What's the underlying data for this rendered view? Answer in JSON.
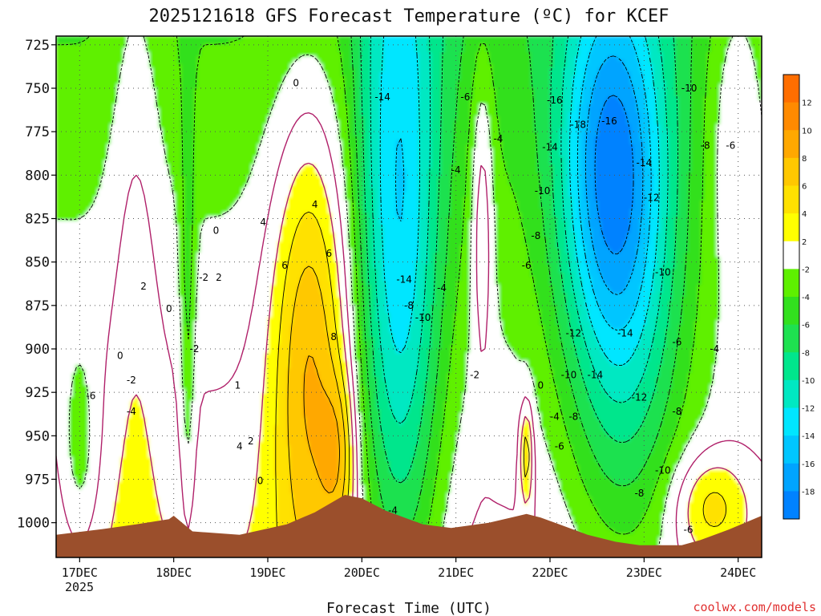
{
  "chart_data": {
    "type": "heatmap",
    "title": "2025121618 GFS Forecast Temperature (ºC) for KCEF",
    "xlabel": "Forecast Time (UTC)",
    "ylabel": "",
    "credit": "coolwx.com/models",
    "y_axis": {
      "ticks": [
        "725",
        "750",
        "775",
        "800",
        "825",
        "850",
        "875",
        "900",
        "925",
        "950",
        "975",
        "1000"
      ],
      "values": [
        725,
        750,
        775,
        800,
        825,
        850,
        875,
        900,
        925,
        950,
        975,
        1000
      ],
      "range": [
        720,
        1020
      ],
      "inverted": true
    },
    "x_axis": {
      "ticks": [
        "17DEC",
        "18DEC",
        "19DEC",
        "20DEC",
        "21DEC",
        "22DEC",
        "23DEC",
        "24DEC"
      ],
      "values": [
        0,
        1,
        2,
        3,
        4,
        5,
        6,
        7
      ],
      "range": [
        -0.25,
        7.25
      ],
      "year_label": "2025"
    },
    "colorbar": {
      "tick_labels": [
        "12",
        "10",
        "8",
        "6",
        "4",
        "2",
        "-2",
        "-4",
        "-6",
        "-8",
        "-10",
        "-12",
        "-14",
        "-16",
        "-18"
      ],
      "bins": [
        {
          "from": 12,
          "to": 14,
          "color": "#ff6e00"
        },
        {
          "from": 10,
          "to": 12,
          "color": "#ff8a00"
        },
        {
          "from": 8,
          "to": 10,
          "color": "#ffa800"
        },
        {
          "from": 6,
          "to": 8,
          "color": "#ffc800"
        },
        {
          "from": 4,
          "to": 6,
          "color": "#ffe100"
        },
        {
          "from": 2,
          "to": 4,
          "color": "#ffff00"
        },
        {
          "from": -2,
          "to": 2,
          "color": "#ffffff"
        },
        {
          "from": -4,
          "to": -2,
          "color": "#5ef000"
        },
        {
          "from": -6,
          "to": -4,
          "color": "#32e01e"
        },
        {
          "from": -8,
          "to": -6,
          "color": "#1ee150"
        },
        {
          "from": -10,
          "to": -8,
          "color": "#00e68c"
        },
        {
          "from": -12,
          "to": -10,
          "color": "#00e8c2"
        },
        {
          "from": -14,
          "to": -12,
          "color": "#00e6ff"
        },
        {
          "from": -16,
          "to": -14,
          "color": "#00c6ff"
        },
        {
          "from": -18,
          "to": -16,
          "color": "#00a4ff"
        },
        {
          "from": -20,
          "to": -18,
          "color": "#0082ff"
        }
      ]
    },
    "contour_labels": [
      {
        "text": "0",
        "x": 2.3,
        "p": 747
      },
      {
        "text": "-14",
        "x": 3.22,
        "p": 755
      },
      {
        "text": "-6",
        "x": 4.1,
        "p": 755
      },
      {
        "text": "-16",
        "x": 5.05,
        "p": 757
      },
      {
        "text": "-18",
        "x": 5.3,
        "p": 771
      },
      {
        "text": "-16",
        "x": 5.63,
        "p": 769
      },
      {
        "text": "-10",
        "x": 6.48,
        "p": 750
      },
      {
        "text": "-4",
        "x": 4.45,
        "p": 779
      },
      {
        "text": "-14",
        "x": 5.0,
        "p": 784
      },
      {
        "text": "-14",
        "x": 6.0,
        "p": 793
      },
      {
        "text": "-8",
        "x": 6.65,
        "p": 783
      },
      {
        "text": "-6",
        "x": 6.92,
        "p": 783
      },
      {
        "text": "-4",
        "x": 4.0,
        "p": 797
      },
      {
        "text": "-10",
        "x": 4.92,
        "p": 809
      },
      {
        "text": "-12",
        "x": 6.08,
        "p": 813
      },
      {
        "text": "4",
        "x": 2.5,
        "p": 817
      },
      {
        "text": "0",
        "x": 1.45,
        "p": 832
      },
      {
        "text": "4",
        "x": 1.95,
        "p": 827
      },
      {
        "text": "-8",
        "x": 4.85,
        "p": 835
      },
      {
        "text": "6",
        "x": 2.65,
        "p": 845
      },
      {
        "text": "6",
        "x": 2.18,
        "p": 852
      },
      {
        "text": "-6",
        "x": 4.75,
        "p": 852
      },
      {
        "text": "-10",
        "x": 6.2,
        "p": 856
      },
      {
        "text": "-2",
        "x": 1.32,
        "p": 859
      },
      {
        "text": "2",
        "x": 1.48,
        "p": 859
      },
      {
        "text": "2",
        "x": 0.68,
        "p": 864
      },
      {
        "text": "-14",
        "x": 3.45,
        "p": 860
      },
      {
        "text": "-4",
        "x": 3.85,
        "p": 865
      },
      {
        "text": "-8",
        "x": 3.5,
        "p": 875
      },
      {
        "text": "0",
        "x": 0.95,
        "p": 877
      },
      {
        "text": "-10",
        "x": 3.65,
        "p": 882
      },
      {
        "text": "8",
        "x": 2.7,
        "p": 893
      },
      {
        "text": "-12",
        "x": 5.25,
        "p": 891
      },
      {
        "text": "-14",
        "x": 5.8,
        "p": 891
      },
      {
        "text": "-6",
        "x": 6.35,
        "p": 896
      },
      {
        "text": "-4",
        "x": 6.75,
        "p": 900
      },
      {
        "text": "-2",
        "x": 1.22,
        "p": 900
      },
      {
        "text": "0",
        "x": 0.43,
        "p": 904
      },
      {
        "text": "-2",
        "x": 0.55,
        "p": 918
      },
      {
        "text": "1",
        "x": 1.68,
        "p": 921
      },
      {
        "text": "-2",
        "x": 4.2,
        "p": 915
      },
      {
        "text": "0",
        "x": 4.9,
        "p": 921
      },
      {
        "text": "-10",
        "x": 5.2,
        "p": 915
      },
      {
        "text": "-14",
        "x": 5.48,
        "p": 915
      },
      {
        "text": "-6",
        "x": 0.12,
        "p": 927
      },
      {
        "text": "-4",
        "x": 0.55,
        "p": 936
      },
      {
        "text": "-12",
        "x": 5.95,
        "p": 928
      },
      {
        "text": "-4",
        "x": 5.05,
        "p": 939
      },
      {
        "text": "-8",
        "x": 5.25,
        "p": 939
      },
      {
        "text": "-8",
        "x": 6.35,
        "p": 936
      },
      {
        "text": "4",
        "x": 1.7,
        "p": 956
      },
      {
        "text": "2",
        "x": 1.82,
        "p": 953
      },
      {
        "text": "-6",
        "x": 5.1,
        "p": 956
      },
      {
        "text": "-10",
        "x": 6.2,
        "p": 970
      },
      {
        "text": "0",
        "x": 1.92,
        "p": 976
      },
      {
        "text": "-8",
        "x": 5.95,
        "p": 983
      },
      {
        "text": "-4",
        "x": 3.33,
        "p": 993
      },
      {
        "text": "-6",
        "x": 6.47,
        "p": 1004
      }
    ],
    "annotations": [
      "Terrain (brown) shades surface pressure near 1000-1010 hPa"
    ]
  }
}
